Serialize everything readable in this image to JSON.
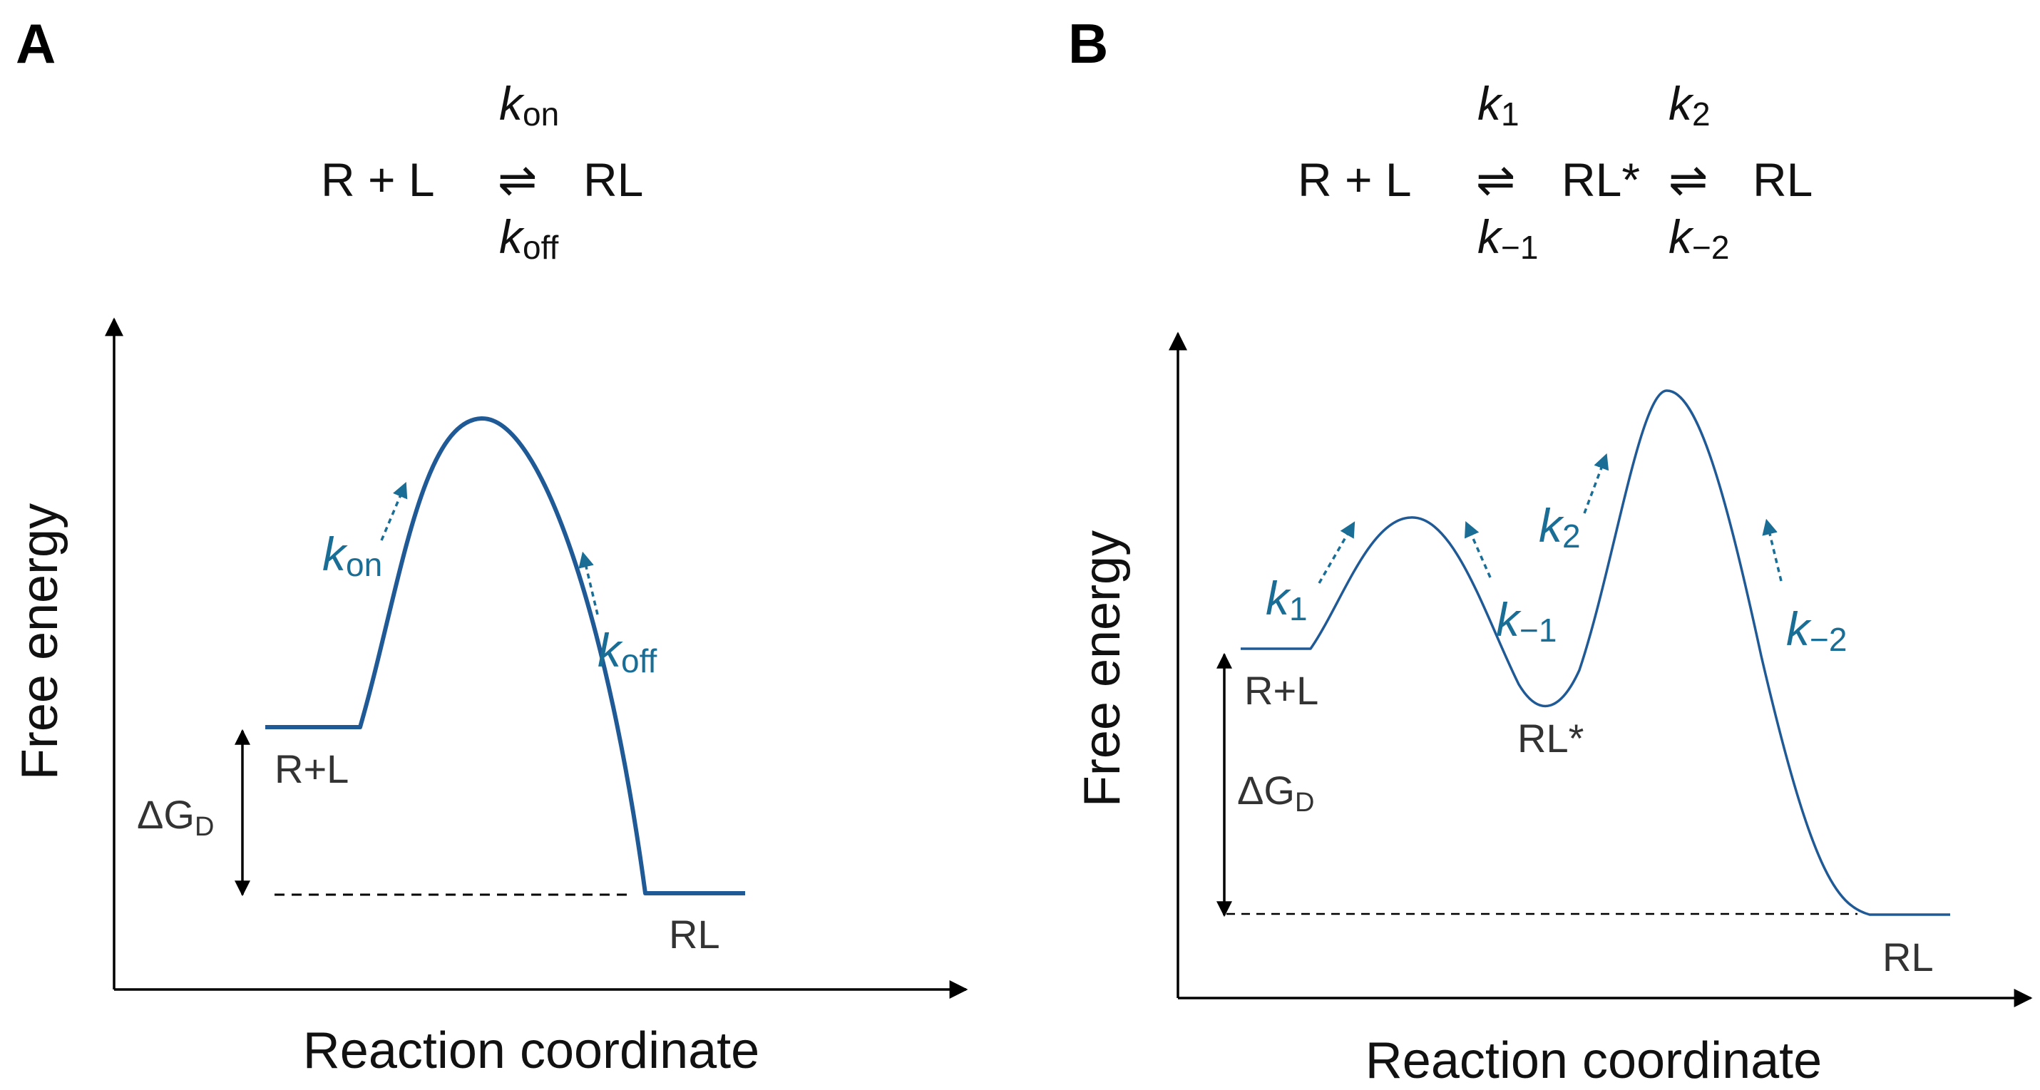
{
  "panelA": {
    "label": "A",
    "equation": {
      "left": "R  +  L",
      "arrow": "⇌",
      "right": "RL",
      "k_top": "k",
      "k_top_sub": "on",
      "k_bottom": "k",
      "k_bottom_sub": "off"
    },
    "y_axis": "Free energy",
    "x_axis": "Reaction coordinate",
    "states": {
      "reactant": "R+L",
      "product": "RL"
    },
    "delta_g": {
      "symbol": "ΔG",
      "sub": "D"
    },
    "rates": [
      {
        "k": "k",
        "sub": "on"
      },
      {
        "k": "k",
        "sub": "off"
      }
    ]
  },
  "panelB": {
    "label": "B",
    "equation": {
      "left": "R  +  L",
      "arrow1": "⇌",
      "middle": "RL*",
      "arrow2": "⇌",
      "right": "RL",
      "k1_top": "k",
      "k1_top_sub": "1",
      "k1_bottom": "k",
      "k1_bottom_sub": "−1",
      "k2_top": "k",
      "k2_top_sub": "2",
      "k2_bottom": "k",
      "k2_bottom_sub": "−2"
    },
    "y_axis": "Free energy",
    "x_axis": "Reaction coordinate",
    "states": {
      "reactant": "R+L",
      "intermediate": "RL*",
      "product": "RL"
    },
    "delta_g": {
      "symbol": "ΔG",
      "sub": "D"
    },
    "rates": [
      {
        "k": "k",
        "sub": "1"
      },
      {
        "k": "k",
        "sub": "−1"
      },
      {
        "k": "k",
        "sub": "2"
      },
      {
        "k": "k",
        "sub": "−2"
      }
    ]
  },
  "colors": {
    "curve": "#1f5a96",
    "rate": "#1a6e96",
    "axis": "#000000"
  }
}
